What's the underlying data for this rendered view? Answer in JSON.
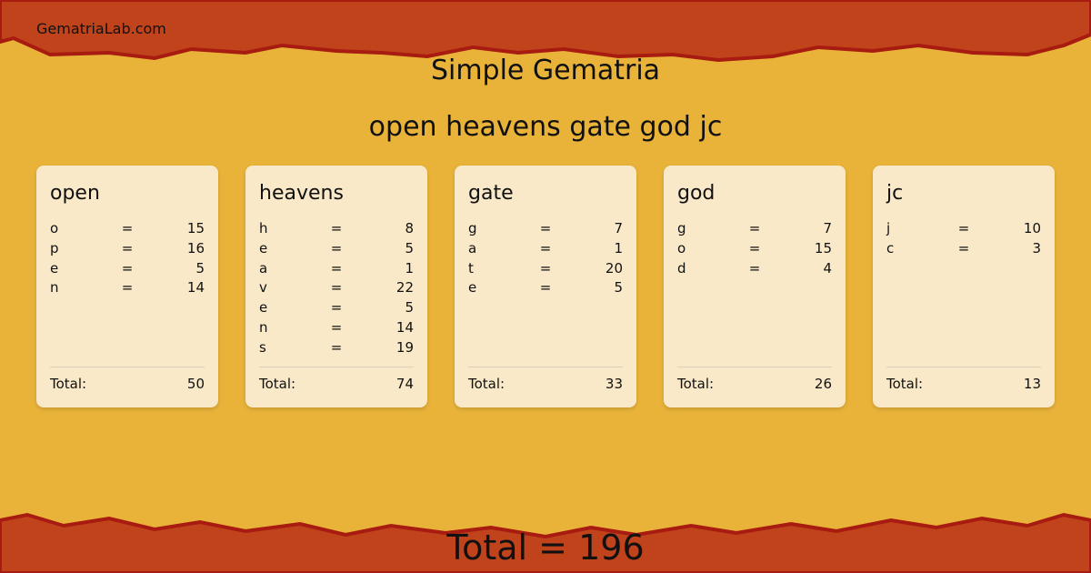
{
  "site_name": "GematriaLab.com",
  "title": "Simple Gematria",
  "phrase": "open heavens gate god jc",
  "colors": {
    "background": "#e9b33a",
    "band": "#c0431c",
    "band_edge": "#a81b10",
    "card": "#f9e9c8"
  },
  "words": [
    {
      "word": "open",
      "letters": [
        [
          "o",
          "15"
        ],
        [
          "p",
          "16"
        ],
        [
          "e",
          "5"
        ],
        [
          "n",
          "14"
        ]
      ],
      "total_label": "Total:",
      "total": "50"
    },
    {
      "word": "heavens",
      "letters": [
        [
          "h",
          "8"
        ],
        [
          "e",
          "5"
        ],
        [
          "a",
          "1"
        ],
        [
          "v",
          "22"
        ],
        [
          "e",
          "5"
        ],
        [
          "n",
          "14"
        ],
        [
          "s",
          "19"
        ]
      ],
      "total_label": "Total:",
      "total": "74"
    },
    {
      "word": "gate",
      "letters": [
        [
          "g",
          "7"
        ],
        [
          "a",
          "1"
        ],
        [
          "t",
          "20"
        ],
        [
          "e",
          "5"
        ]
      ],
      "total_label": "Total:",
      "total": "33"
    },
    {
      "word": "god",
      "letters": [
        [
          "g",
          "7"
        ],
        [
          "o",
          "15"
        ],
        [
          "d",
          "4"
        ]
      ],
      "total_label": "Total:",
      "total": "26"
    },
    {
      "word": "jc",
      "letters": [
        [
          "j",
          "10"
        ],
        [
          "c",
          "3"
        ]
      ],
      "total_label": "Total:",
      "total": "13"
    }
  ],
  "equals": "=",
  "grand_total": "Total = 196"
}
